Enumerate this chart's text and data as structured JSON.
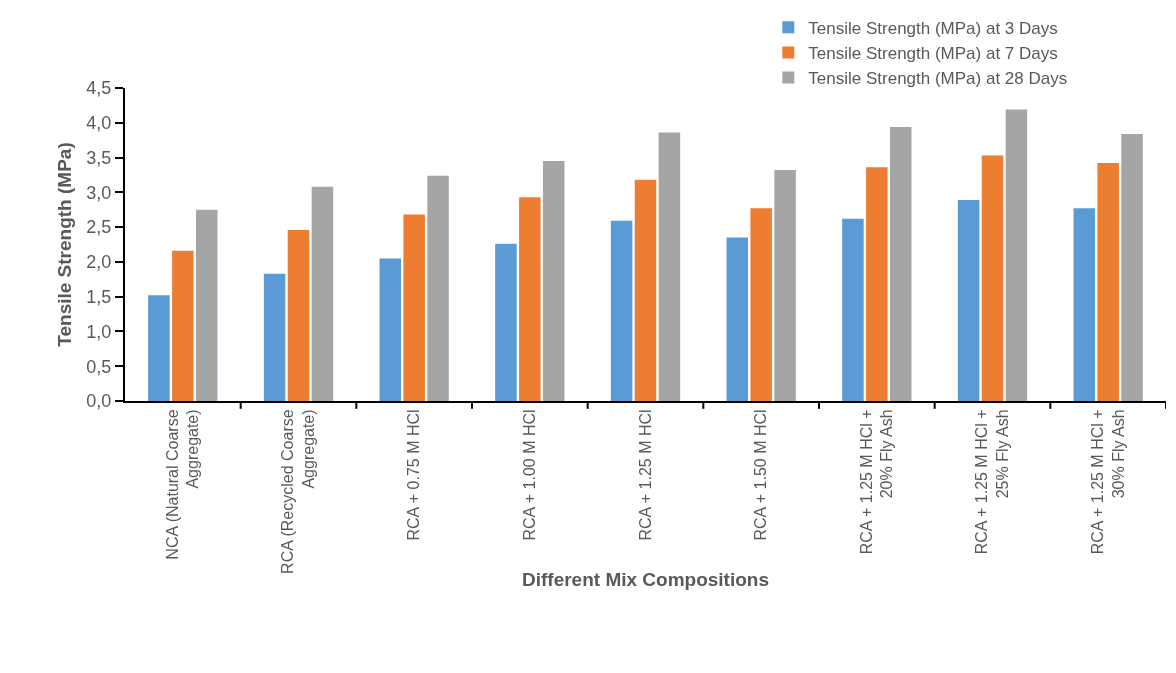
{
  "chart_data": {
    "type": "bar",
    "xlabel": "Different Mix Compositions",
    "ylabel": "Tensile Strength (MPa)",
    "categories": [
      "NCA (Natural Coarse Aggregate)",
      "RCA (Recycled Coarse Aggregate)",
      "RCA + 0.75 M HCl",
      "RCA + 1.00 M HCl",
      "RCA + 1.25 M HCl",
      "RCA + 1.50 M HCl",
      "RCA + 1.25 M HCl + 20% Fly Ash",
      "RCA + 1.25 M HCl + 25% Fly Ash",
      "RCA + 1.25 M HCl + 30% Fly Ash"
    ],
    "series": [
      {
        "name": "Tensile Strength (MPa) at 3 Days",
        "color": "#5b9bd5",
        "values": [
          1.52,
          1.83,
          2.05,
          2.26,
          2.59,
          2.35,
          2.62,
          2.89,
          2.77
        ]
      },
      {
        "name": "Tensile Strength (MPa) at 7 Days",
        "color": "#ed7d31",
        "values": [
          2.16,
          2.46,
          2.68,
          2.93,
          3.18,
          2.77,
          3.36,
          3.53,
          3.42
        ]
      },
      {
        "name": "Tensile Strength (MPa) at 28 Days",
        "color": "#a5a5a5",
        "values": [
          2.75,
          3.08,
          3.24,
          3.45,
          3.86,
          3.32,
          3.94,
          4.19,
          3.84
        ]
      }
    ],
    "ylim": [
      0,
      4.5
    ],
    "yticks": [
      {
        "value": 0,
        "label": "0,0"
      },
      {
        "value": 0.5,
        "label": "0,5"
      },
      {
        "value": 1,
        "label": "1,0"
      },
      {
        "value": 1.5,
        "label": "1,5"
      },
      {
        "value": 2,
        "label": "2,0"
      },
      {
        "value": 2.5,
        "label": "2,5"
      },
      {
        "value": 3,
        "label": "3,0"
      },
      {
        "value": 3.5,
        "label": "3,5"
      },
      {
        "value": 4,
        "label": "4,0"
      },
      {
        "value": 4.5,
        "label": "4,5"
      }
    ],
    "grid": false,
    "legend": "top right"
  }
}
